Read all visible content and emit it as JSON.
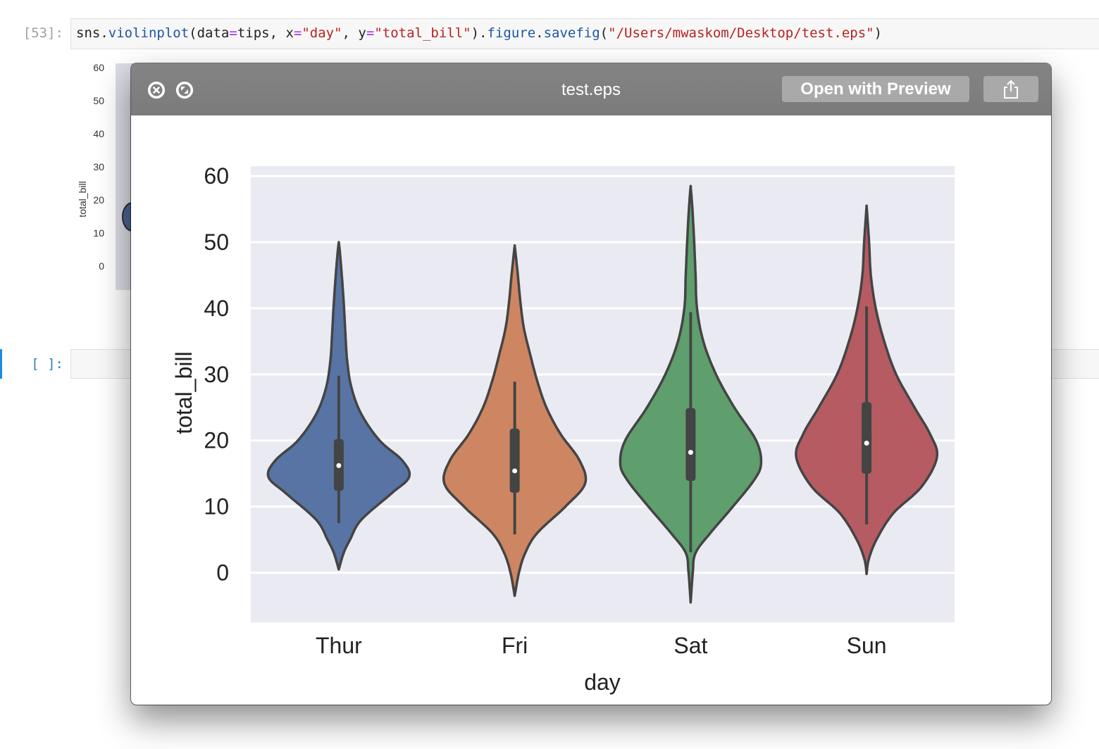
{
  "notebook": {
    "cell1": {
      "prompt": "[53]:",
      "code": {
        "t1": "sns.",
        "t2": "violinplot",
        "t3": "(data",
        "t4": "=",
        "t5": "tips, x",
        "t6": "=",
        "t7": "\"day\"",
        "t8": ", y",
        "t9": "=",
        "t10": "\"total_bill\"",
        "t11": ").",
        "t12": "figure",
        "t13": ".",
        "t14": "savefig",
        "t15": "(",
        "t16": "\"/Users/mwaskom/Desktop/test.eps\"",
        "t17": ")"
      }
    },
    "cell2": {
      "prompt": "[ ]:"
    },
    "background_plot": {
      "ylabel": "total_bill",
      "ticks": [
        "60",
        "50",
        "40",
        "30",
        "20",
        "10",
        "0"
      ]
    }
  },
  "quicklook": {
    "title": "test.eps",
    "open_label": "Open with Preview",
    "icons": {
      "close": "close-icon",
      "fullscreen": "fullscreen-icon",
      "share": "share-icon"
    }
  },
  "chart_data": {
    "type": "violin",
    "xlabel": "day",
    "ylabel": "total_bill",
    "categories": [
      "Thur",
      "Fri",
      "Sat",
      "Sun"
    ],
    "colors": [
      "#5874a5",
      "#cd8661",
      "#5e9f6d",
      "#b65b62"
    ],
    "ylim": [
      -7.5,
      61.5
    ],
    "yticks": [
      0,
      10,
      20,
      30,
      40,
      50,
      60
    ],
    "grid": true,
    "background": "#eaeaf2",
    "violins": [
      {
        "name": "Thur",
        "profile": [
          [
            0.5,
            0.0
          ],
          [
            3,
            0.07
          ],
          [
            5,
            0.16
          ],
          [
            8,
            0.32
          ],
          [
            12,
            0.75
          ],
          [
            14.5,
            1.0
          ],
          [
            17,
            0.9
          ],
          [
            20,
            0.58
          ],
          [
            24,
            0.32
          ],
          [
            28,
            0.18
          ],
          [
            32,
            0.12
          ],
          [
            36,
            0.095
          ],
          [
            40,
            0.075
          ],
          [
            44,
            0.05
          ],
          [
            48,
            0.02
          ],
          [
            50,
            0.0
          ]
        ],
        "median": 16.2,
        "q1": 12.4,
        "q3": 20.2,
        "whisker_low": 7.5,
        "whisker_high": 29.8
      },
      {
        "name": "Fri",
        "profile": [
          [
            -3.5,
            0.0
          ],
          [
            0,
            0.06
          ],
          [
            3,
            0.15
          ],
          [
            6,
            0.32
          ],
          [
            10,
            0.72
          ],
          [
            13.5,
            1.0
          ],
          [
            17,
            0.92
          ],
          [
            21,
            0.65
          ],
          [
            25,
            0.45
          ],
          [
            29,
            0.32
          ],
          [
            33,
            0.22
          ],
          [
            37,
            0.13
          ],
          [
            41,
            0.08
          ],
          [
            45,
            0.045
          ],
          [
            49.5,
            0.0
          ]
        ],
        "median": 15.4,
        "q1": 12.1,
        "q3": 21.8,
        "whisker_low": 5.8,
        "whisker_high": 28.9
      },
      {
        "name": "Sat",
        "profile": [
          [
            -4.5,
            0.0
          ],
          [
            0,
            0.03
          ],
          [
            3,
            0.07
          ],
          [
            6,
            0.28
          ],
          [
            10,
            0.6
          ],
          [
            14,
            0.9
          ],
          [
            16.5,
            1.0
          ],
          [
            20,
            0.93
          ],
          [
            25,
            0.62
          ],
          [
            30,
            0.36
          ],
          [
            35,
            0.18
          ],
          [
            40,
            0.09
          ],
          [
            45,
            0.07
          ],
          [
            50,
            0.05
          ],
          [
            55,
            0.025
          ],
          [
            58.5,
            0.0
          ]
        ],
        "median": 18.2,
        "q1": 13.9,
        "q3": 24.9,
        "whisker_low": 3.1,
        "whisker_high": 39.4
      },
      {
        "name": "Sun",
        "profile": [
          [
            -0.2,
            0.0
          ],
          [
            2,
            0.03
          ],
          [
            5,
            0.14
          ],
          [
            9,
            0.38
          ],
          [
            13,
            0.78
          ],
          [
            17.5,
            1.0
          ],
          [
            21,
            0.9
          ],
          [
            25,
            0.68
          ],
          [
            30,
            0.42
          ],
          [
            35,
            0.25
          ],
          [
            40,
            0.13
          ],
          [
            45,
            0.06
          ],
          [
            50,
            0.035
          ],
          [
            55.5,
            0.0
          ]
        ],
        "median": 19.6,
        "q1": 15.0,
        "q3": 25.8,
        "whisker_low": 7.3,
        "whisker_high": 40.3
      }
    ]
  }
}
